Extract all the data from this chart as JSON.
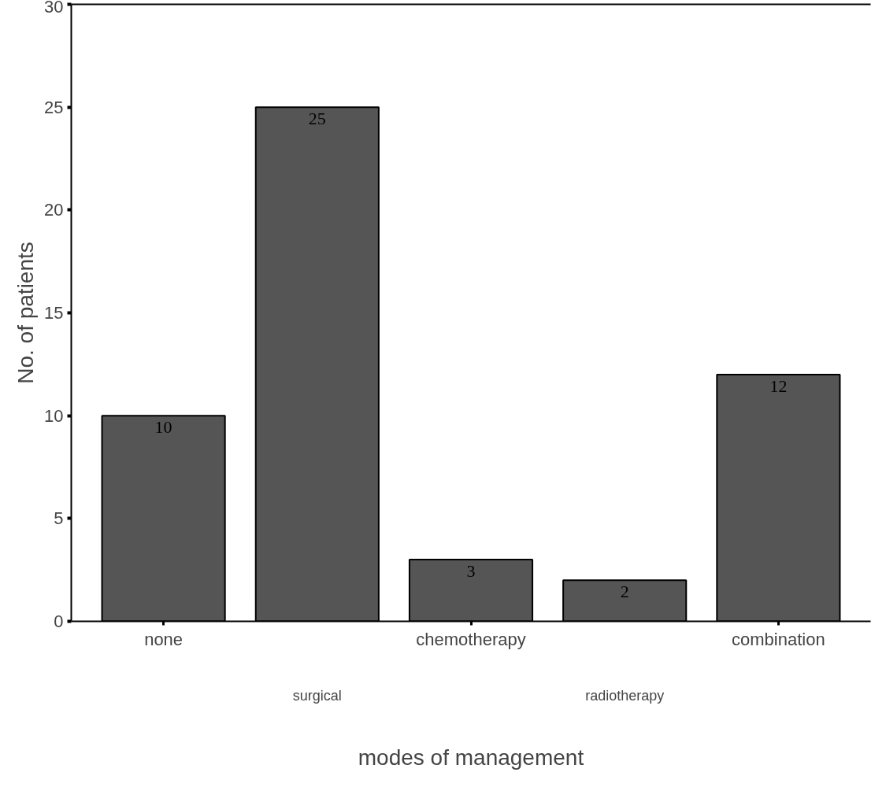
{
  "chart_data": {
    "type": "bar",
    "xlabel": "modes of management",
    "ylabel": "No. of patients",
    "categories": [
      "none",
      "surgical",
      "chemotherapy",
      "radiotherapy",
      "combination"
    ],
    "values": [
      10,
      25,
      3,
      2,
      12
    ],
    "color": "#555555",
    "ylim": [
      0,
      30
    ],
    "yticks": [
      0,
      5,
      10,
      15,
      20,
      25,
      30
    ],
    "grid": false,
    "data_labels": true
  }
}
